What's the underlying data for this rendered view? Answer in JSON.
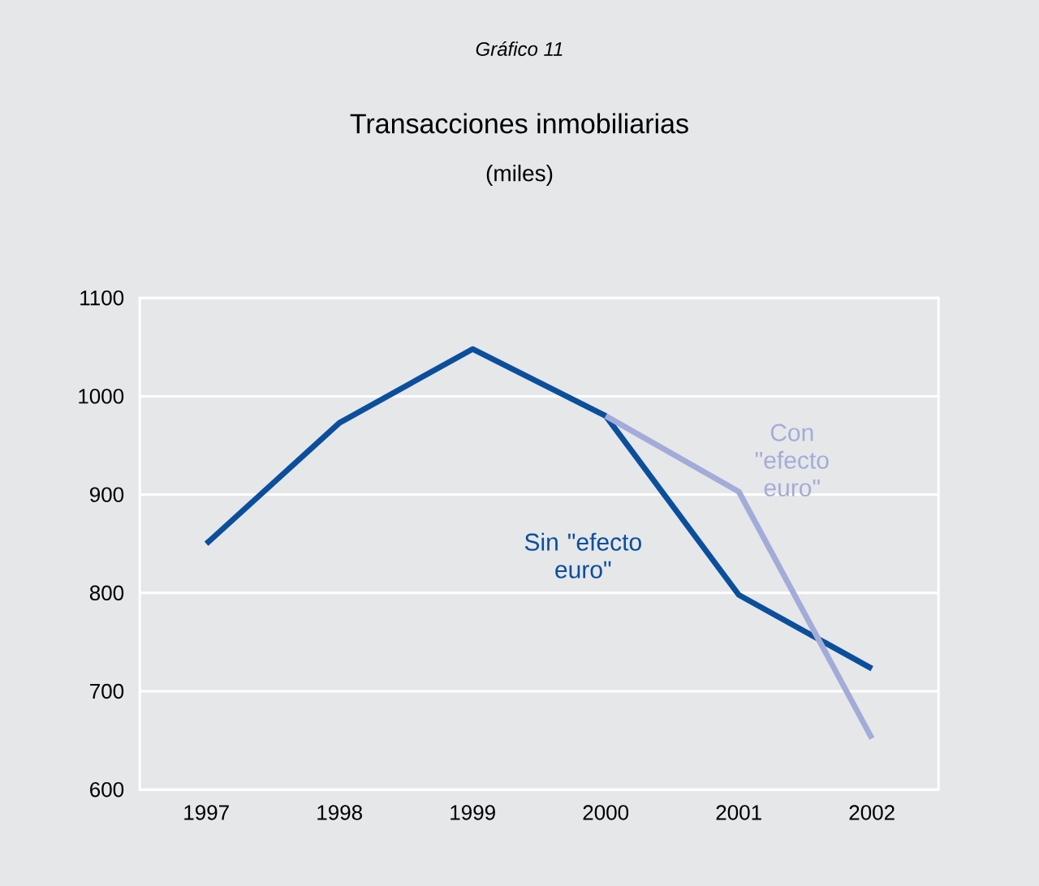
{
  "chart_data": {
    "type": "line",
    "title": "Transacciones inmobiliarias",
    "subtitle": "(miles)",
    "annotations": [
      "Gráfico 11"
    ],
    "categories": [
      "1997",
      "1998",
      "1999",
      "2000",
      "2001",
      "2002"
    ],
    "series": [
      {
        "name": "Sin \"efecto euro\"",
        "color": "#0b4f9c",
        "values": [
          850,
          973,
          1048,
          980,
          798,
          723
        ]
      },
      {
        "name": "Con \"efecto euro\"",
        "color": "#a3acd8",
        "values": [
          null,
          null,
          null,
          980,
          903,
          652
        ]
      }
    ],
    "ylim": [
      600,
      1100
    ],
    "yticks": [
      600,
      700,
      800,
      900,
      1000,
      1100
    ],
    "grid": "y",
    "legend": false,
    "marker": "none",
    "line_style": "solid"
  }
}
